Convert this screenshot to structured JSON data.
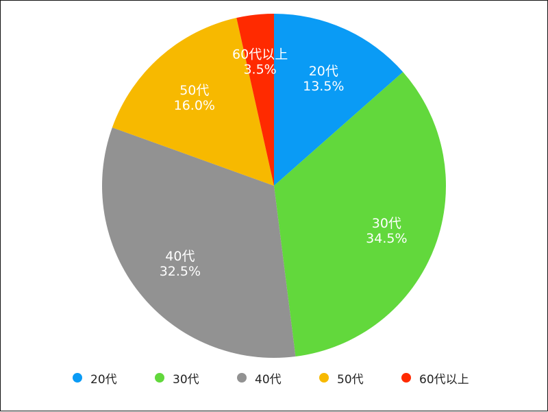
{
  "chart_data": {
    "type": "pie",
    "title": "",
    "series": [
      {
        "name": "20代",
        "value": 13.5,
        "label": "13.5%",
        "color": "#0A9BF5"
      },
      {
        "name": "30代",
        "value": 34.5,
        "label": "34.5%",
        "color": "#62D83C"
      },
      {
        "name": "40代",
        "value": 32.5,
        "label": "32.5%",
        "color": "#929292"
      },
      {
        "name": "50代",
        "value": 16.0,
        "label": "16.0%",
        "color": "#F7B900"
      },
      {
        "name": "60代以上",
        "value": 3.5,
        "label": "3.5%",
        "color": "#FF2A00"
      }
    ],
    "start_angle": "12 o'clock",
    "direction": "clockwise",
    "legend_position": "bottom"
  }
}
